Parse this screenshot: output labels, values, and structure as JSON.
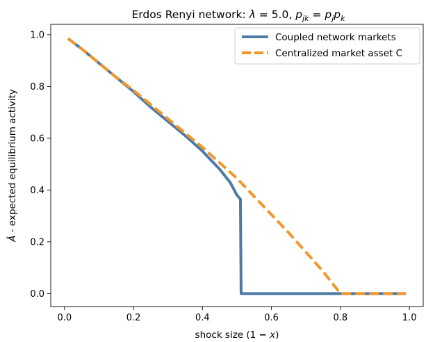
{
  "chart_data": {
    "type": "line",
    "title_parts": {
      "prefix": "Erdos Renyi network: ",
      "lambda_symbol": "λ",
      "lambda_eq": " = 5.0, ",
      "p": "p",
      "sub_jk": "jk",
      "eq": " = ",
      "sub_j": "j",
      "sub_k": "k"
    },
    "xlabel_parts": {
      "prefix": "shock size (1 ",
      "minus": "−",
      "x": "x",
      "suffix": ")"
    },
    "ylabel_parts": {
      "symbol": "Â",
      "rest": " - expected equilibrium activity"
    },
    "xlim": [
      -0.04,
      1.04
    ],
    "ylim": [
      -0.05,
      1.04
    ],
    "x_ticks": [
      0.0,
      0.2,
      0.4,
      0.6,
      0.8,
      1.0
    ],
    "x_tick_labels": [
      "0.0",
      "0.2",
      "0.4",
      "0.6",
      "0.8",
      "1.0"
    ],
    "y_ticks": [
      0.0,
      0.2,
      0.4,
      0.6,
      0.8,
      1.0
    ],
    "y_tick_labels": [
      "0.0",
      "0.2",
      "0.4",
      "0.6",
      "0.8",
      "1.0"
    ],
    "grid": false,
    "legend_position": "top-right",
    "series": [
      {
        "name": "Coupled network markets",
        "color": "#4c7ba5",
        "style": "solid",
        "x": [
          0.01,
          0.05,
          0.1,
          0.15,
          0.2,
          0.25,
          0.3,
          0.35,
          0.4,
          0.45,
          0.48,
          0.5,
          0.51,
          0.512,
          0.515,
          0.52,
          0.6,
          0.7,
          0.8,
          0.9,
          0.99
        ],
        "y": [
          0.985,
          0.945,
          0.89,
          0.835,
          0.78,
          0.72,
          0.665,
          0.61,
          0.55,
          0.48,
          0.43,
          0.38,
          0.365,
          0.0,
          0.0,
          0.0,
          0.0,
          0.0,
          0.0,
          0.0,
          0.0
        ]
      },
      {
        "name": "Centralized market asset C",
        "color": "#f2962c",
        "style": "dashed",
        "x": [
          0.01,
          0.05,
          0.1,
          0.15,
          0.2,
          0.25,
          0.3,
          0.35,
          0.4,
          0.45,
          0.5,
          0.55,
          0.6,
          0.65,
          0.7,
          0.75,
          0.8,
          0.82,
          0.9,
          0.99
        ],
        "y": [
          0.985,
          0.945,
          0.89,
          0.835,
          0.785,
          0.73,
          0.675,
          0.62,
          0.565,
          0.505,
          0.445,
          0.375,
          0.305,
          0.235,
          0.16,
          0.085,
          0.0,
          0.0,
          0.0,
          0.0
        ]
      }
    ]
  }
}
